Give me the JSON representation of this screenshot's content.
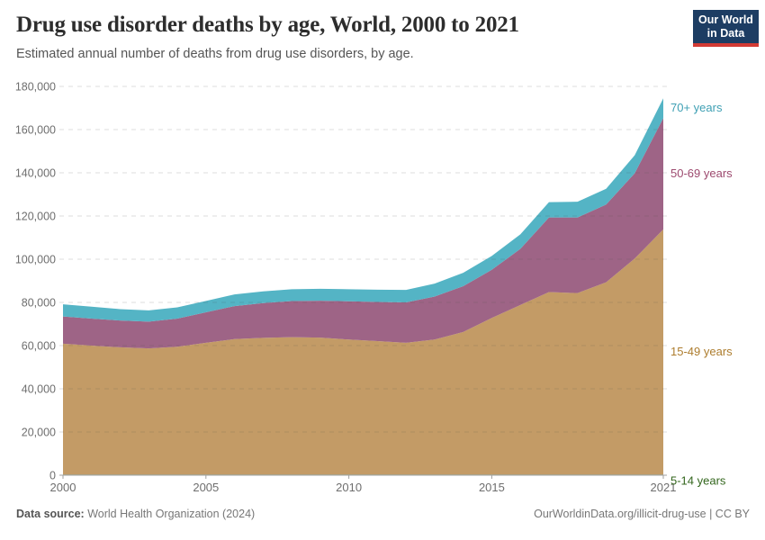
{
  "header": {
    "title": "Drug use disorder deaths by age, World, 2000 to 2021",
    "subtitle": "Estimated annual number of deaths from drug use disorders, by age.",
    "logo_line1": "Our World",
    "logo_line2": "in Data"
  },
  "footer": {
    "source_label": "Data source:",
    "source_value": " World Health Organization (2024)",
    "right_text": "OurWorldinData.org/illicit-drug-use | CC BY"
  },
  "colors": {
    "navy": "#1d3d63",
    "red": "#d23a34",
    "axis_text": "#6e6e6e",
    "grid": "rgba(70,70,70,0.18)",
    "axis_line": "#a0a0a0"
  },
  "chart_data": {
    "type": "area",
    "stacked": true,
    "title": "Drug use disorder deaths by age, World, 2000 to 2021",
    "xlabel": "",
    "ylabel": "Estimated annual number of deaths",
    "x": [
      2000,
      2001,
      2002,
      2003,
      2004,
      2005,
      2006,
      2007,
      2008,
      2009,
      2010,
      2011,
      2012,
      2013,
      2014,
      2015,
      2016,
      2017,
      2018,
      2019,
      2020,
      2021
    ],
    "series": [
      {
        "name": "5-14 years",
        "color": "#3e6c22",
        "label_color": "#33661d",
        "label_dy": 7,
        "values": [
          300,
          300,
          300,
          300,
          300,
          300,
          300,
          300,
          300,
          300,
          300,
          300,
          300,
          300,
          300,
          300,
          300,
          300,
          300,
          300,
          300,
          300
        ]
      },
      {
        "name": "15-49 years",
        "color": "#c39b66",
        "label_color": "#ad7d2e",
        "label_dy": 0,
        "values": [
          60600,
          59700,
          58900,
          58400,
          59200,
          61000,
          62700,
          63300,
          63600,
          63400,
          62500,
          61800,
          61000,
          62500,
          66000,
          72500,
          78500,
          84500,
          84000,
          89000,
          100000,
          113500
        ]
      },
      {
        "name": "50-69 years",
        "color": "#9e6486",
        "label_color": "#9d4a6f",
        "label_dy": 0,
        "values": [
          12600,
          12500,
          12400,
          12400,
          13000,
          14100,
          15300,
          16100,
          16700,
          17100,
          17700,
          18100,
          18700,
          19900,
          21200,
          22300,
          26000,
          34500,
          35000,
          36000,
          39500,
          51500
        ]
      },
      {
        "name": "70+ years",
        "color": "#54b4c5",
        "label_color": "#3fa0b4",
        "label_dy": 0,
        "values": [
          5600,
          5500,
          5300,
          5200,
          5200,
          5300,
          5400,
          5400,
          5500,
          5500,
          5600,
          5700,
          5800,
          6000,
          6200,
          6400,
          6700,
          7100,
          7300,
          7300,
          8300,
          9200
        ]
      }
    ],
    "ylim": [
      0,
      180000
    ],
    "yticks": [
      0,
      20000,
      40000,
      60000,
      80000,
      100000,
      120000,
      140000,
      160000,
      180000
    ],
    "xticks": [
      2000,
      2005,
      2010,
      2015,
      2021
    ],
    "grid": "dashed-horizontal",
    "legend_position": "right-of-plot"
  }
}
